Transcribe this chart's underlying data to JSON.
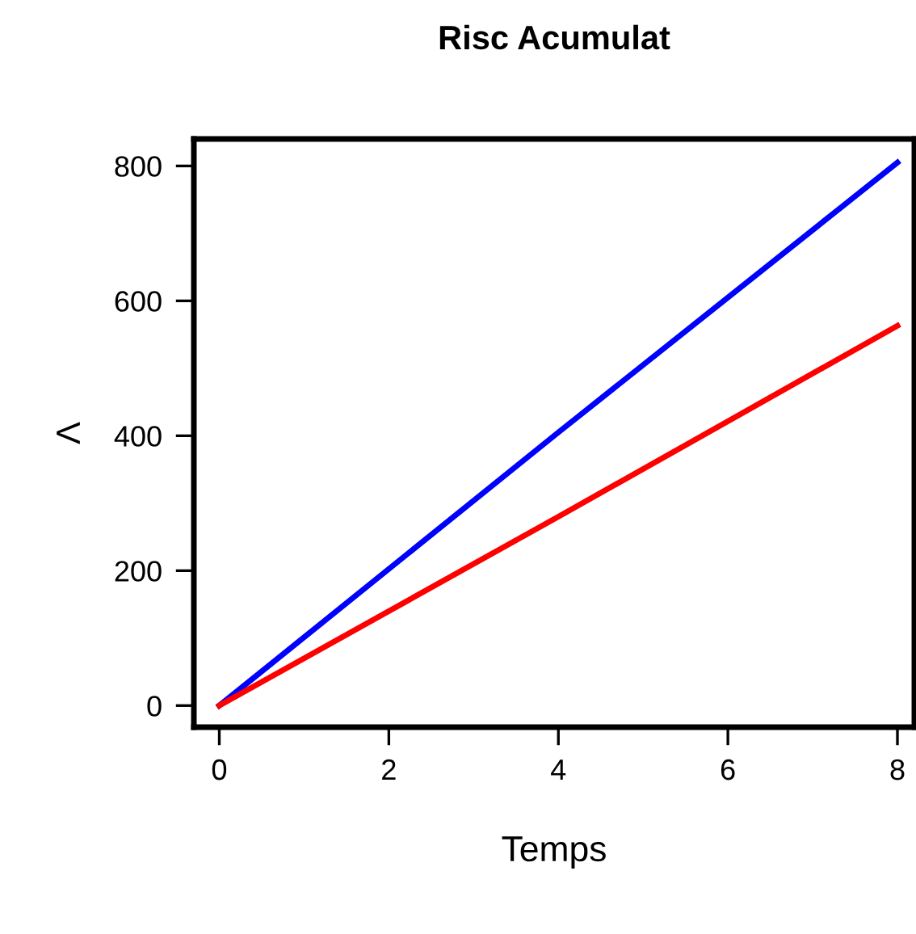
{
  "chart_data": {
    "type": "line",
    "title": "Risc Acumulat",
    "xlabel": "Temps",
    "ylabel": "Λ",
    "x": [
      0,
      4,
      8
    ],
    "series": [
      {
        "color": "#0000ff",
        "values": [
          0,
          405,
          805
        ]
      },
      {
        "color": "#ff0000",
        "values": [
          0,
          280,
          563
        ]
      }
    ],
    "xlim": [
      -0.3,
      8.2
    ],
    "ylim": [
      -32,
      840
    ],
    "xticks": [
      0,
      2,
      4,
      6,
      8
    ],
    "yticks": [
      0,
      200,
      400,
      600,
      800
    ],
    "grid": false,
    "legend": false,
    "marker": "none",
    "line_style": "solid"
  }
}
